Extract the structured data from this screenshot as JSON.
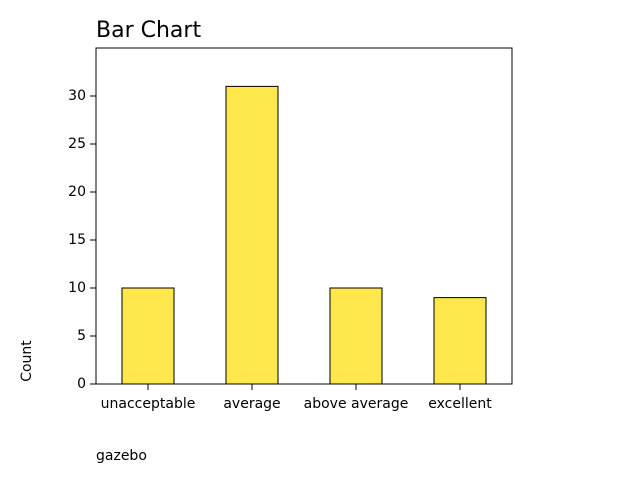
{
  "chart_data": {
    "type": "bar",
    "title": "Bar Chart",
    "x_label": "gazebo",
    "y_label": "Count",
    "categories": [
      "unacceptable",
      "average",
      "above average",
      "excellent"
    ],
    "values": [
      10,
      31,
      10,
      9
    ],
    "color": "#fde74c",
    "ylim": [
      0,
      35
    ],
    "yticks": [
      0,
      5,
      10,
      15,
      20,
      25,
      30
    ],
    "grid": false
  }
}
